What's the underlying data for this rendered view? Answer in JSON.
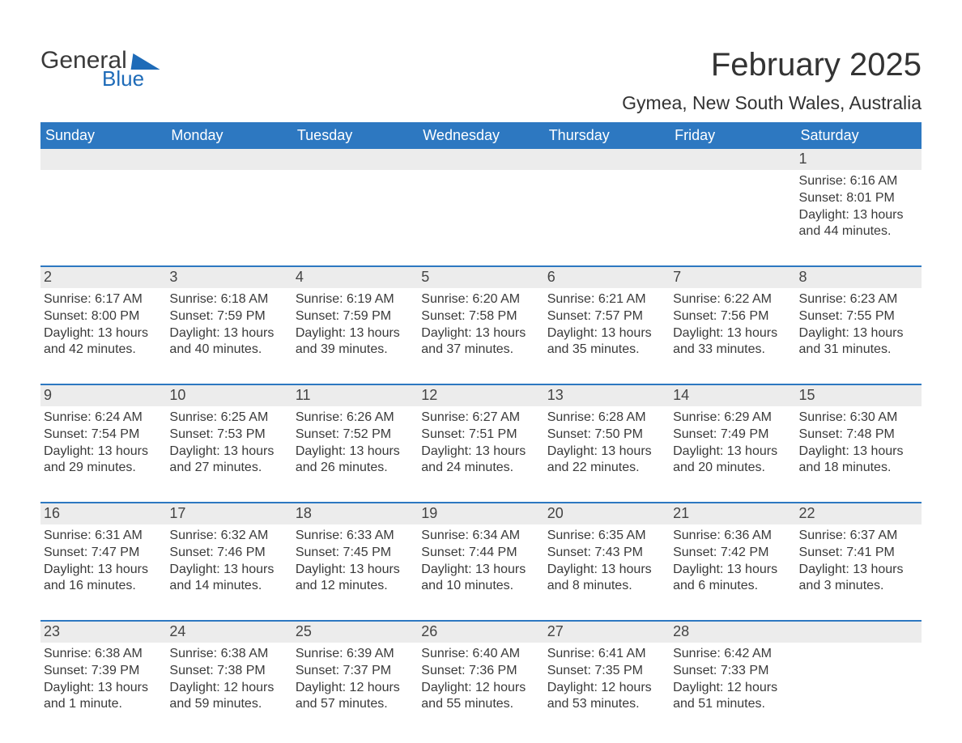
{
  "logo": {
    "word1": "General",
    "word2": "Blue"
  },
  "colors": {
    "header_bg": "#2d78c1",
    "header_fg": "#ffffff",
    "daybar_bg": "#ececec",
    "accent": "#1e6bb8",
    "text": "#3a3a3a",
    "page_bg": "#ffffff"
  },
  "title": {
    "month": "February 2025",
    "location": "Gymea, New South Wales, Australia"
  },
  "day_headers": [
    "Sunday",
    "Monday",
    "Tuesday",
    "Wednesday",
    "Thursday",
    "Friday",
    "Saturday"
  ],
  "weeks": [
    [
      null,
      null,
      null,
      null,
      null,
      null,
      {
        "n": "1",
        "sunrise": "Sunrise: 6:16 AM",
        "sunset": "Sunset: 8:01 PM",
        "dl1": "Daylight: 13 hours",
        "dl2": "and 44 minutes."
      }
    ],
    [
      {
        "n": "2",
        "sunrise": "Sunrise: 6:17 AM",
        "sunset": "Sunset: 8:00 PM",
        "dl1": "Daylight: 13 hours",
        "dl2": "and 42 minutes."
      },
      {
        "n": "3",
        "sunrise": "Sunrise: 6:18 AM",
        "sunset": "Sunset: 7:59 PM",
        "dl1": "Daylight: 13 hours",
        "dl2": "and 40 minutes."
      },
      {
        "n": "4",
        "sunrise": "Sunrise: 6:19 AM",
        "sunset": "Sunset: 7:59 PM",
        "dl1": "Daylight: 13 hours",
        "dl2": "and 39 minutes."
      },
      {
        "n": "5",
        "sunrise": "Sunrise: 6:20 AM",
        "sunset": "Sunset: 7:58 PM",
        "dl1": "Daylight: 13 hours",
        "dl2": "and 37 minutes."
      },
      {
        "n": "6",
        "sunrise": "Sunrise: 6:21 AM",
        "sunset": "Sunset: 7:57 PM",
        "dl1": "Daylight: 13 hours",
        "dl2": "and 35 minutes."
      },
      {
        "n": "7",
        "sunrise": "Sunrise: 6:22 AM",
        "sunset": "Sunset: 7:56 PM",
        "dl1": "Daylight: 13 hours",
        "dl2": "and 33 minutes."
      },
      {
        "n": "8",
        "sunrise": "Sunrise: 6:23 AM",
        "sunset": "Sunset: 7:55 PM",
        "dl1": "Daylight: 13 hours",
        "dl2": "and 31 minutes."
      }
    ],
    [
      {
        "n": "9",
        "sunrise": "Sunrise: 6:24 AM",
        "sunset": "Sunset: 7:54 PM",
        "dl1": "Daylight: 13 hours",
        "dl2": "and 29 minutes."
      },
      {
        "n": "10",
        "sunrise": "Sunrise: 6:25 AM",
        "sunset": "Sunset: 7:53 PM",
        "dl1": "Daylight: 13 hours",
        "dl2": "and 27 minutes."
      },
      {
        "n": "11",
        "sunrise": "Sunrise: 6:26 AM",
        "sunset": "Sunset: 7:52 PM",
        "dl1": "Daylight: 13 hours",
        "dl2": "and 26 minutes."
      },
      {
        "n": "12",
        "sunrise": "Sunrise: 6:27 AM",
        "sunset": "Sunset: 7:51 PM",
        "dl1": "Daylight: 13 hours",
        "dl2": "and 24 minutes."
      },
      {
        "n": "13",
        "sunrise": "Sunrise: 6:28 AM",
        "sunset": "Sunset: 7:50 PM",
        "dl1": "Daylight: 13 hours",
        "dl2": "and 22 minutes."
      },
      {
        "n": "14",
        "sunrise": "Sunrise: 6:29 AM",
        "sunset": "Sunset: 7:49 PM",
        "dl1": "Daylight: 13 hours",
        "dl2": "and 20 minutes."
      },
      {
        "n": "15",
        "sunrise": "Sunrise: 6:30 AM",
        "sunset": "Sunset: 7:48 PM",
        "dl1": "Daylight: 13 hours",
        "dl2": "and 18 minutes."
      }
    ],
    [
      {
        "n": "16",
        "sunrise": "Sunrise: 6:31 AM",
        "sunset": "Sunset: 7:47 PM",
        "dl1": "Daylight: 13 hours",
        "dl2": "and 16 minutes."
      },
      {
        "n": "17",
        "sunrise": "Sunrise: 6:32 AM",
        "sunset": "Sunset: 7:46 PM",
        "dl1": "Daylight: 13 hours",
        "dl2": "and 14 minutes."
      },
      {
        "n": "18",
        "sunrise": "Sunrise: 6:33 AM",
        "sunset": "Sunset: 7:45 PM",
        "dl1": "Daylight: 13 hours",
        "dl2": "and 12 minutes."
      },
      {
        "n": "19",
        "sunrise": "Sunrise: 6:34 AM",
        "sunset": "Sunset: 7:44 PM",
        "dl1": "Daylight: 13 hours",
        "dl2": "and 10 minutes."
      },
      {
        "n": "20",
        "sunrise": "Sunrise: 6:35 AM",
        "sunset": "Sunset: 7:43 PM",
        "dl1": "Daylight: 13 hours",
        "dl2": "and 8 minutes."
      },
      {
        "n": "21",
        "sunrise": "Sunrise: 6:36 AM",
        "sunset": "Sunset: 7:42 PM",
        "dl1": "Daylight: 13 hours",
        "dl2": "and 6 minutes."
      },
      {
        "n": "22",
        "sunrise": "Sunrise: 6:37 AM",
        "sunset": "Sunset: 7:41 PM",
        "dl1": "Daylight: 13 hours",
        "dl2": "and 3 minutes."
      }
    ],
    [
      {
        "n": "23",
        "sunrise": "Sunrise: 6:38 AM",
        "sunset": "Sunset: 7:39 PM",
        "dl1": "Daylight: 13 hours",
        "dl2": "and 1 minute."
      },
      {
        "n": "24",
        "sunrise": "Sunrise: 6:38 AM",
        "sunset": "Sunset: 7:38 PM",
        "dl1": "Daylight: 12 hours",
        "dl2": "and 59 minutes."
      },
      {
        "n": "25",
        "sunrise": "Sunrise: 6:39 AM",
        "sunset": "Sunset: 7:37 PM",
        "dl1": "Daylight: 12 hours",
        "dl2": "and 57 minutes."
      },
      {
        "n": "26",
        "sunrise": "Sunrise: 6:40 AM",
        "sunset": "Sunset: 7:36 PM",
        "dl1": "Daylight: 12 hours",
        "dl2": "and 55 minutes."
      },
      {
        "n": "27",
        "sunrise": "Sunrise: 6:41 AM",
        "sunset": "Sunset: 7:35 PM",
        "dl1": "Daylight: 12 hours",
        "dl2": "and 53 minutes."
      },
      {
        "n": "28",
        "sunrise": "Sunrise: 6:42 AM",
        "sunset": "Sunset: 7:33 PM",
        "dl1": "Daylight: 12 hours",
        "dl2": "and 51 minutes."
      },
      null
    ]
  ]
}
